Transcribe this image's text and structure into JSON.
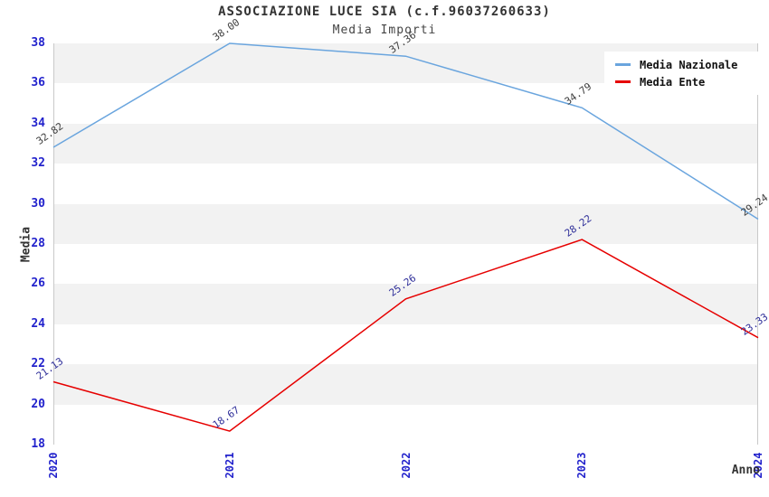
{
  "chart_data": {
    "type": "line",
    "title": "ASSOCIAZIONE LUCE SIA (c.f.96037260633)",
    "subtitle": "Media Importi",
    "xlabel": "Anno",
    "ylabel": "Media",
    "categories": [
      "2020",
      "2021",
      "2022",
      "2023",
      "2024"
    ],
    "series": [
      {
        "name": "Media Nazionale",
        "color": "#6aa5de",
        "label_color": "#3d3d3d",
        "values": [
          32.82,
          38.0,
          37.36,
          34.79,
          29.24
        ]
      },
      {
        "name": "Media Ente",
        "color": "#e60000",
        "label_color": "#2e2e99",
        "values": [
          21.13,
          18.67,
          25.26,
          28.22,
          23.33
        ]
      }
    ],
    "ylim": [
      18,
      38
    ],
    "ytick_step": 2,
    "xtick_rotation_deg": -90,
    "point_label_rotation_deg": -35,
    "grid": "alternating horizontal bands",
    "band_color": "#f2f2f2",
    "tick_label_color": "#2222cc",
    "legend_position": "top-right"
  }
}
